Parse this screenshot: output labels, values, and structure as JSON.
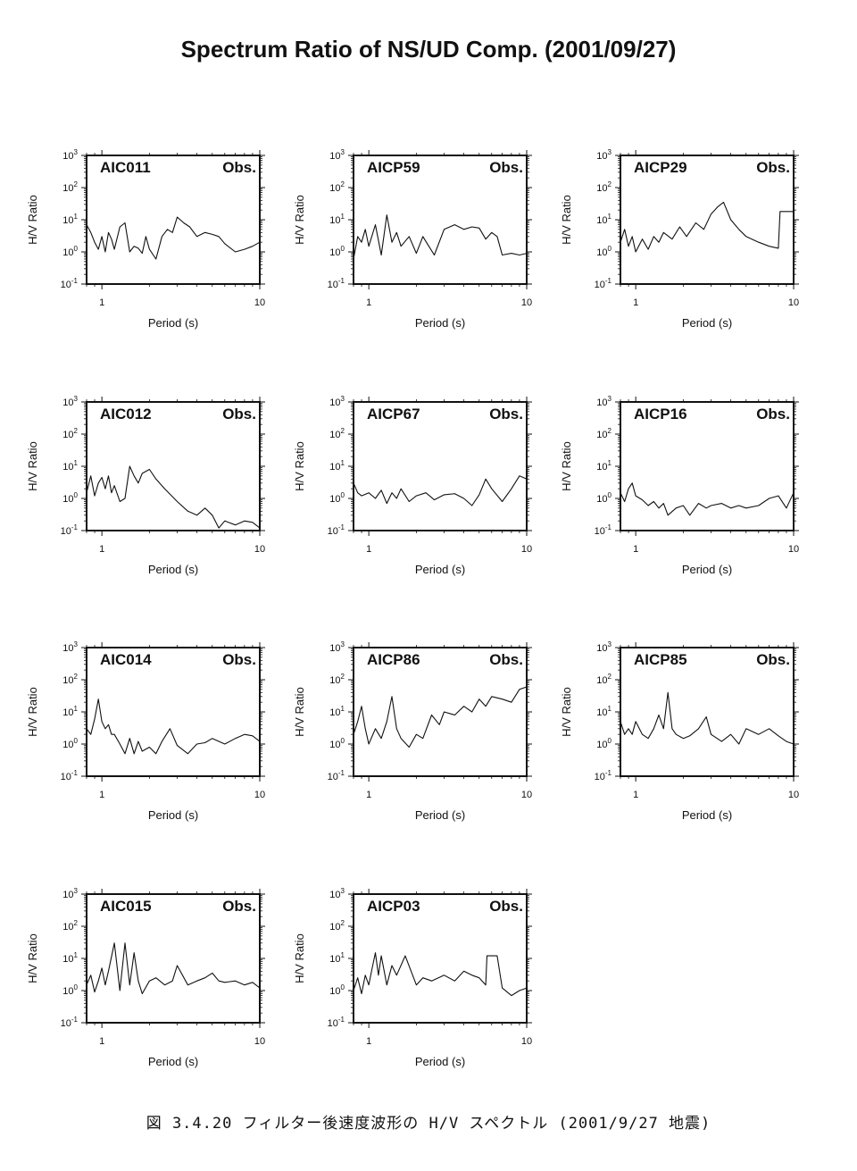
{
  "title": "Spectrum Ratio of NS/UD Comp. (2001/09/27)",
  "caption": "図 3.4.20  フィルター後速度波形の H/V スペクトル (2001/9/27 地震)",
  "chart_data": [
    {
      "type": "line",
      "station": "AIC011",
      "tag": "Obs.",
      "xlabel": "Period (s)",
      "ylabel": "H/V Ratio",
      "xscale": "log",
      "yscale": "log",
      "xlim": [
        0.8,
        10
      ],
      "ylim": [
        0.1,
        1000
      ],
      "x": [
        0.8,
        0.85,
        0.9,
        0.95,
        1.0,
        1.05,
        1.1,
        1.15,
        1.2,
        1.3,
        1.4,
        1.5,
        1.6,
        1.7,
        1.8,
        1.9,
        2.0,
        2.2,
        2.4,
        2.6,
        2.8,
        3.0,
        3.3,
        3.6,
        4.0,
        4.5,
        5.0,
        5.5,
        6.0,
        7.0,
        8.0,
        9.0,
        10.0
      ],
      "y": [
        7,
        4,
        2,
        1.2,
        3,
        1,
        4,
        2.5,
        1.2,
        6,
        8,
        1,
        1.5,
        1.3,
        0.9,
        3,
        1.2,
        0.6,
        3,
        5,
        4,
        12,
        8,
        6,
        3,
        4,
        3.5,
        3,
        1.8,
        1,
        1.2,
        1.5,
        2
      ]
    },
    {
      "type": "line",
      "station": "AICP59",
      "tag": "Obs.",
      "xlabel": "Period (s)",
      "ylabel": "H/V Ratio",
      "xscale": "log",
      "yscale": "log",
      "xlim": [
        0.8,
        10
      ],
      "ylim": [
        0.1,
        1000
      ],
      "x": [
        0.8,
        0.85,
        0.9,
        0.95,
        1.0,
        1.1,
        1.2,
        1.3,
        1.4,
        1.5,
        1.6,
        1.8,
        2.0,
        2.2,
        2.4,
        2.6,
        3.0,
        3.5,
        4.0,
        4.5,
        5.0,
        5.5,
        6.0,
        6.5,
        7.0,
        8.0,
        9.0,
        10.0
      ],
      "y": [
        0.6,
        3,
        2,
        5,
        1.5,
        7,
        0.8,
        14,
        2,
        4,
        1.5,
        3,
        0.9,
        3,
        1.5,
        0.8,
        5,
        7,
        5,
        6,
        5.5,
        2.5,
        4,
        3,
        0.8,
        0.9,
        0.8,
        0.9
      ]
    },
    {
      "type": "line",
      "station": "AICP29",
      "tag": "Obs.",
      "xlabel": "Period (s)",
      "ylabel": "H/V Ratio",
      "xscale": "log",
      "yscale": "log",
      "xlim": [
        0.8,
        10
      ],
      "ylim": [
        0.1,
        1000
      ],
      "x": [
        0.8,
        0.85,
        0.9,
        0.95,
        1.0,
        1.1,
        1.2,
        1.3,
        1.4,
        1.5,
        1.7,
        1.9,
        2.1,
        2.4,
        2.7,
        3.0,
        3.3,
        3.6,
        4.0,
        4.5,
        5.0,
        6.0,
        7.0,
        8.0,
        8.2,
        9.0,
        10.0
      ],
      "y": [
        2,
        5,
        1.5,
        3,
        1,
        2.5,
        1.2,
        3,
        2,
        4,
        2.5,
        6,
        3,
        8,
        5,
        15,
        25,
        35,
        10,
        5,
        3,
        2,
        1.5,
        1.3,
        18,
        18,
        18
      ]
    },
    {
      "type": "line",
      "station": "AIC012",
      "tag": "Obs.",
      "xlabel": "Period (s)",
      "ylabel": "H/V Ratio",
      "xscale": "log",
      "yscale": "log",
      "xlim": [
        0.8,
        10
      ],
      "ylim": [
        0.1,
        1000
      ],
      "x": [
        0.8,
        0.85,
        0.9,
        0.95,
        1.0,
        1.05,
        1.1,
        1.15,
        1.2,
        1.3,
        1.4,
        1.5,
        1.6,
        1.7,
        1.8,
        2.0,
        2.2,
        2.5,
        3.0,
        3.5,
        4.0,
        4.5,
        5.0,
        5.5,
        6.0,
        7.0,
        8.0,
        9.0,
        10.0
      ],
      "y": [
        1.5,
        5,
        1.2,
        3,
        4.5,
        2,
        5,
        1.5,
        2.5,
        0.8,
        1,
        10,
        5,
        3,
        6,
        8,
        4,
        2,
        0.8,
        0.4,
        0.3,
        0.5,
        0.3,
        0.12,
        0.2,
        0.15,
        0.2,
        0.18,
        0.12
      ]
    },
    {
      "type": "line",
      "station": "AICP67",
      "tag": "Obs.",
      "xlabel": "Period (s)",
      "ylabel": "H/V Ratio",
      "xscale": "log",
      "yscale": "log",
      "xlim": [
        0.8,
        10
      ],
      "ylim": [
        0.1,
        1000
      ],
      "x": [
        0.8,
        0.85,
        0.9,
        1.0,
        1.1,
        1.2,
        1.3,
        1.4,
        1.5,
        1.6,
        1.8,
        2.0,
        2.3,
        2.6,
        3.0,
        3.5,
        4.0,
        4.5,
        5.0,
        5.5,
        6.0,
        7.0,
        8.0,
        9.0,
        10.0
      ],
      "y": [
        3,
        1.5,
        1.2,
        1.5,
        1,
        1.8,
        0.7,
        1.5,
        1,
        2,
        0.8,
        1.2,
        1.5,
        0.9,
        1.3,
        1.4,
        1,
        0.6,
        1.3,
        4,
        2,
        0.8,
        2,
        5,
        4
      ]
    },
    {
      "type": "line",
      "station": "AICP16",
      "tag": "Obs.",
      "xlabel": "Period (s)",
      "ylabel": "H/V Ratio",
      "xscale": "log",
      "yscale": "log",
      "xlim": [
        0.8,
        10
      ],
      "ylim": [
        0.1,
        1000
      ],
      "x": [
        0.8,
        0.85,
        0.9,
        0.95,
        1.0,
        1.1,
        1.2,
        1.3,
        1.4,
        1.5,
        1.6,
        1.8,
        2.0,
        2.2,
        2.5,
        2.8,
        3.0,
        3.5,
        4.0,
        4.5,
        5.0,
        6.0,
        7.0,
        8.0,
        9.0,
        10.0
      ],
      "y": [
        1.5,
        0.8,
        2,
        3,
        1.2,
        0.9,
        0.6,
        0.8,
        0.5,
        0.7,
        0.3,
        0.5,
        0.6,
        0.3,
        0.7,
        0.5,
        0.6,
        0.7,
        0.5,
        0.6,
        0.5,
        0.6,
        1,
        1.2,
        0.5,
        1.5
      ]
    },
    {
      "type": "line",
      "station": "AIC014",
      "tag": "Obs.",
      "xlabel": "Period (s)",
      "ylabel": "H/V Ratio",
      "xscale": "log",
      "yscale": "log",
      "xlim": [
        0.8,
        10
      ],
      "ylim": [
        0.1,
        1000
      ],
      "x": [
        0.8,
        0.85,
        0.9,
        0.95,
        1.0,
        1.05,
        1.1,
        1.15,
        1.2,
        1.3,
        1.4,
        1.5,
        1.6,
        1.7,
        1.8,
        2.0,
        2.2,
        2.4,
        2.7,
        3.0,
        3.5,
        4.0,
        4.5,
        5.0,
        6.0,
        7.0,
        8.0,
        9.0,
        10.0
      ],
      "y": [
        3,
        2,
        6,
        25,
        5,
        3,
        4,
        2,
        2,
        1,
        0.5,
        1.5,
        0.5,
        1.2,
        0.6,
        0.8,
        0.5,
        1.2,
        3,
        0.9,
        0.5,
        1,
        1.1,
        1.5,
        1,
        1.5,
        2,
        1.8,
        1.2
      ]
    },
    {
      "type": "line",
      "station": "AICP86",
      "tag": "Obs.",
      "xlabel": "Period (s)",
      "ylabel": "H/V Ratio",
      "xscale": "log",
      "yscale": "log",
      "xlim": [
        0.8,
        10
      ],
      "ylim": [
        0.1,
        1000
      ],
      "x": [
        0.8,
        0.85,
        0.9,
        0.95,
        1.0,
        1.1,
        1.2,
        1.3,
        1.4,
        1.5,
        1.6,
        1.8,
        2.0,
        2.2,
        2.5,
        2.8,
        3.0,
        3.5,
        4.0,
        4.5,
        5.0,
        5.5,
        6.0,
        7.0,
        8.0,
        9.0,
        10.0
      ],
      "y": [
        2,
        5,
        15,
        3,
        1,
        3,
        1.5,
        5,
        30,
        3,
        1.5,
        0.8,
        2,
        1.5,
        8,
        4,
        10,
        8,
        15,
        10,
        25,
        15,
        30,
        25,
        20,
        50,
        60
      ]
    },
    {
      "type": "line",
      "station": "AICP85",
      "tag": "Obs.",
      "xlabel": "Period (s)",
      "ylabel": "H/V Ratio",
      "xscale": "log",
      "yscale": "log",
      "xlim": [
        0.8,
        10
      ],
      "ylim": [
        0.1,
        1000
      ],
      "x": [
        0.8,
        0.85,
        0.9,
        0.95,
        1.0,
        1.1,
        1.2,
        1.3,
        1.4,
        1.5,
        1.6,
        1.7,
        1.8,
        2.0,
        2.2,
        2.5,
        2.8,
        3.0,
        3.5,
        4.0,
        4.5,
        5.0,
        6.0,
        7.0,
        8.0,
        9.0,
        10.0
      ],
      "y": [
        5,
        2,
        3,
        2,
        5,
        2,
        1.5,
        3,
        8,
        3,
        40,
        3,
        2,
        1.5,
        1.8,
        3,
        7,
        2,
        1.2,
        2,
        1,
        3,
        2,
        3,
        1.8,
        1.2,
        1
      ]
    },
    {
      "type": "line",
      "station": "AIC015",
      "tag": "Obs.",
      "xlabel": "Period (s)",
      "ylabel": "H/V Ratio",
      "xscale": "log",
      "yscale": "log",
      "xlim": [
        0.8,
        10
      ],
      "ylim": [
        0.1,
        1000
      ],
      "x": [
        0.8,
        0.85,
        0.9,
        0.95,
        1.0,
        1.05,
        1.1,
        1.2,
        1.3,
        1.4,
        1.5,
        1.6,
        1.7,
        1.8,
        2.0,
        2.2,
        2.5,
        2.8,
        3.0,
        3.5,
        4.0,
        4.5,
        5.0,
        5.5,
        6.0,
        7.0,
        8.0,
        9.0,
        10.0
      ],
      "y": [
        1.5,
        3,
        0.9,
        2,
        5,
        1.5,
        4,
        30,
        1,
        30,
        1.5,
        15,
        2,
        0.8,
        2,
        2.5,
        1.5,
        2,
        6,
        1.5,
        2,
        2.5,
        3.5,
        2,
        1.8,
        2,
        1.5,
        1.8,
        1.2
      ]
    },
    {
      "type": "line",
      "station": "AICP03",
      "tag": "Obs.",
      "xlabel": "Period (s)",
      "ylabel": "H/V Ratio",
      "xscale": "log",
      "yscale": "log",
      "xlim": [
        0.8,
        10
      ],
      "ylim": [
        0.1,
        1000
      ],
      "x": [
        0.8,
        0.85,
        0.9,
        0.95,
        1.0,
        1.05,
        1.1,
        1.15,
        1.2,
        1.3,
        1.4,
        1.5,
        1.7,
        2.0,
        2.2,
        2.5,
        3.0,
        3.5,
        4.0,
        4.5,
        5.0,
        5.5,
        5.6,
        6.5,
        7.0,
        8.0,
        9.0,
        10.0
      ],
      "y": [
        1,
        2.5,
        0.8,
        3,
        1.5,
        5,
        15,
        3,
        12,
        1.5,
        6,
        3,
        12,
        1.5,
        2.5,
        2,
        3,
        2,
        4,
        3,
        2.5,
        1.5,
        12,
        12,
        1.2,
        0.7,
        1,
        1.2
      ]
    }
  ]
}
